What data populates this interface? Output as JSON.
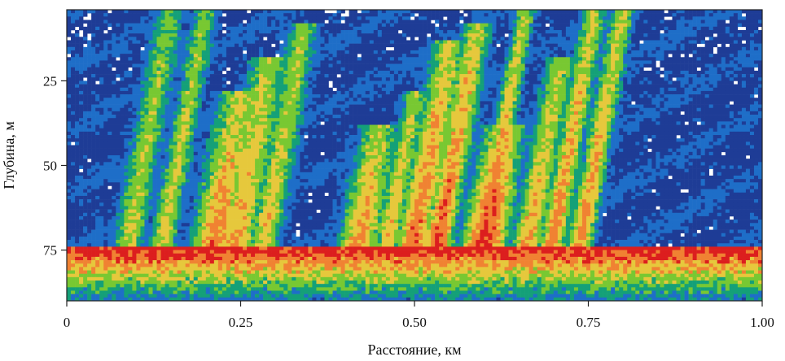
{
  "chart_data": {
    "type": "heatmap",
    "title": "",
    "xlabel": "Расстояние, км",
    "ylabel": "Глубина, м",
    "xlim": [
      0,
      1.0
    ],
    "ylim": [
      90,
      4
    ],
    "x_ticks": [
      {
        "value": 0,
        "label": "0"
      },
      {
        "value": 0.25,
        "label": "0.25"
      },
      {
        "value": 0.5,
        "label": "0.50"
      },
      {
        "value": 0.75,
        "label": "0.75"
      },
      {
        "value": 1.0,
        "label": "1.00"
      }
    ],
    "y_ticks": [
      {
        "value": 25,
        "label": "25"
      },
      {
        "value": 50,
        "label": "50"
      },
      {
        "value": 75,
        "label": "75"
      }
    ],
    "colormap": [
      "#ffffff",
      "#1e3c96",
      "#1e6ec8",
      "#14a078",
      "#78c832",
      "#e6c83c",
      "#f08232",
      "#dc1e1e"
    ],
    "bottom_depth_m": 74,
    "plumes": [
      {
        "x": 0.15,
        "top": 4,
        "bottom": 75,
        "width": 0.03,
        "intensity": 0.4
      },
      {
        "x": 0.2,
        "top": 4,
        "bottom": 75,
        "width": 0.025,
        "intensity": 0.45
      },
      {
        "x": 0.25,
        "top": 30,
        "bottom": 75,
        "width": 0.045,
        "intensity": 0.7
      },
      {
        "x": 0.29,
        "top": 20,
        "bottom": 75,
        "width": 0.04,
        "intensity": 0.6
      },
      {
        "x": 0.34,
        "top": 10,
        "bottom": 75,
        "width": 0.03,
        "intensity": 0.5
      },
      {
        "x": 0.45,
        "top": 40,
        "bottom": 75,
        "width": 0.04,
        "intensity": 0.65
      },
      {
        "x": 0.5,
        "top": 30,
        "bottom": 75,
        "width": 0.025,
        "intensity": 0.55
      },
      {
        "x": 0.55,
        "top": 15,
        "bottom": 75,
        "width": 0.035,
        "intensity": 0.75
      },
      {
        "x": 0.59,
        "top": 10,
        "bottom": 75,
        "width": 0.03,
        "intensity": 0.8
      },
      {
        "x": 0.63,
        "top": 40,
        "bottom": 75,
        "width": 0.045,
        "intensity": 0.9
      },
      {
        "x": 0.66,
        "top": 4,
        "bottom": 75,
        "width": 0.02,
        "intensity": 0.7
      },
      {
        "x": 0.71,
        "top": 20,
        "bottom": 75,
        "width": 0.03,
        "intensity": 0.6
      },
      {
        "x": 0.76,
        "top": 4,
        "bottom": 75,
        "width": 0.025,
        "intensity": 0.7
      },
      {
        "x": 0.8,
        "top": 4,
        "bottom": 75,
        "width": 0.025,
        "intensity": 0.65
      }
    ]
  }
}
